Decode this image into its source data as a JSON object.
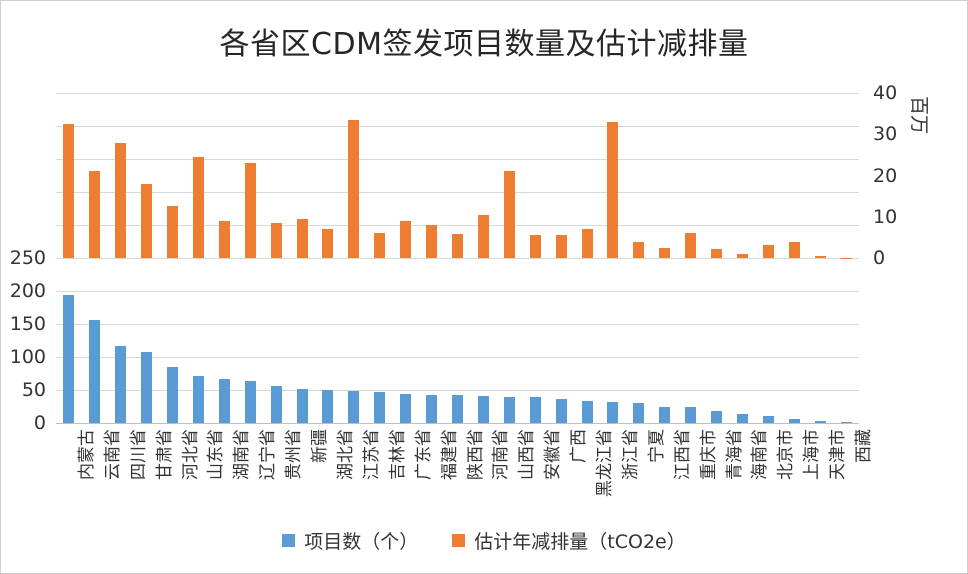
{
  "chart_data": {
    "type": "bar",
    "title": "各省区CDM签发项目数量及估计减排量",
    "legend_position": "bottom",
    "grid": true,
    "categories": [
      "内蒙古",
      "云南省",
      "四川省",
      "甘肃省",
      "河北省",
      "山东省",
      "湖南省",
      "辽宁省",
      "贵州省",
      "新疆",
      "湖北省",
      "江苏省",
      "吉林省",
      "广东省",
      "福建省",
      "陕西省",
      "河南省",
      "山西省",
      "安徽省",
      "广西",
      "黑龙江省",
      "浙江省",
      "宁夏",
      "江西省",
      "重庆市",
      "青海省",
      "海南省",
      "北京市",
      "上海市",
      "天津市",
      "西藏"
    ],
    "series": [
      {
        "name": "项目数（个）",
        "axis": "left",
        "color": "#5B9BD5",
        "values": [
          194,
          156,
          117,
          108,
          85,
          71,
          66,
          64,
          56,
          51,
          50,
          48,
          47,
          44,
          43,
          42,
          41,
          40,
          39,
          36,
          33,
          32,
          30,
          25,
          24,
          18,
          13,
          10,
          6,
          3,
          1
        ]
      },
      {
        "name": "估计年减排量（tCO2e）",
        "axis": "right",
        "color": "#ED7D31",
        "values": [
          32.5,
          21,
          28,
          18,
          12.5,
          24.5,
          9,
          23,
          8.5,
          9.5,
          7,
          33.5,
          6,
          9,
          8,
          5.8,
          10.5,
          21,
          5.5,
          5.5,
          7,
          33,
          4,
          2.5,
          6,
          2.2,
          1,
          3.2,
          4,
          0.5,
          0.1
        ]
      }
    ],
    "left_axis": {
      "ticks": [
        "250",
        "200",
        "150",
        "100",
        "50",
        "0"
      ],
      "range": [
        0,
        250
      ]
    },
    "right_axis": {
      "ticks": [
        "40",
        "30",
        "20",
        "10",
        "0"
      ],
      "range": [
        0,
        40
      ],
      "unit": "百万"
    },
    "colors": {
      "grid": "#d9d9d9",
      "axis_line": "#bfbfbf",
      "text": "#333333"
    }
  }
}
